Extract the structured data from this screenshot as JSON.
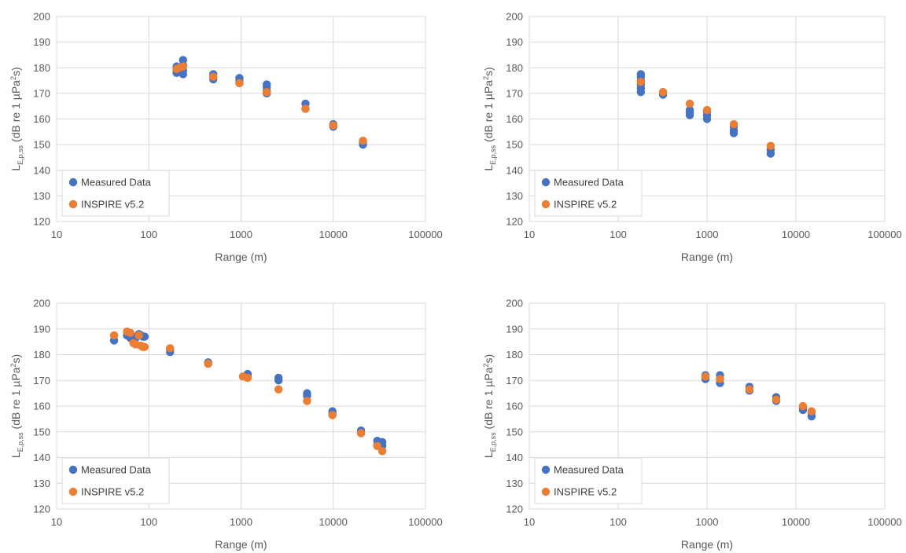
{
  "colors": {
    "measured": "#4472c4",
    "inspire": "#ed7d31",
    "grid": "#d9d9d9",
    "text": "#595959"
  },
  "chart_data": [
    {
      "type": "scatter",
      "title": "",
      "xlabel": "Range (m)",
      "ylabel_main": "L",
      "ylabel_sub": "E,p,ss",
      "ylabel_rest": "(dB re 1 µPa",
      "ylabel_sup": "2",
      "ylabel_end": "s)",
      "xscale": "log",
      "xlim": [
        10,
        100000
      ],
      "ylim": [
        120,
        200
      ],
      "xticks": [
        10,
        100,
        1000,
        10000,
        100000
      ],
      "xtick_labels": [
        "10",
        "100",
        "1000",
        "10000",
        "100000"
      ],
      "yticks": [
        120,
        130,
        140,
        150,
        160,
        170,
        180,
        190,
        200
      ],
      "ytick_labels": [
        "120",
        "130",
        "140",
        "150",
        "160",
        "170",
        "180",
        "190",
        "200"
      ],
      "grid": true,
      "legend_position": "bottom-left",
      "series": [
        {
          "name": "Measured Data",
          "color": "#4472c4",
          "x": [
            200,
            200,
            200,
            200,
            235,
            235,
            235,
            235,
            500,
            500,
            500,
            960,
            960,
            960,
            1900,
            1900,
            1900,
            1900,
            5000,
            5000,
            10000,
            10000,
            21000,
            21000
          ],
          "y": [
            178,
            179,
            180,
            180.5,
            177.5,
            179,
            181,
            183,
            175.5,
            176.5,
            177.5,
            174,
            175,
            176,
            170,
            171,
            172.5,
            173.5,
            164,
            166,
            157,
            158,
            150,
            151
          ]
        },
        {
          "name": "INSPIRE v5.2",
          "color": "#ed7d31",
          "x": [
            200,
            215,
            235,
            500,
            960,
            1900,
            5000,
            10000,
            21000
          ],
          "y": [
            179.5,
            180,
            180.5,
            176.5,
            174,
            170.5,
            164,
            157.5,
            151.5
          ]
        }
      ]
    },
    {
      "type": "scatter",
      "title": "",
      "xlabel": "Range (m)",
      "ylabel_main": "L",
      "ylabel_sub": "E,p,ss",
      "ylabel_rest": "(dB re 1 µPa",
      "ylabel_sup": "2",
      "ylabel_end": "s)",
      "xscale": "log",
      "xlim": [
        10,
        100000
      ],
      "ylim": [
        120,
        200
      ],
      "xticks": [
        10,
        100,
        1000,
        10000,
        100000
      ],
      "xtick_labels": [
        "10",
        "100",
        "1000",
        "10000",
        "100000"
      ],
      "yticks": [
        120,
        130,
        140,
        150,
        160,
        170,
        180,
        190,
        200
      ],
      "ytick_labels": [
        "120",
        "130",
        "140",
        "150",
        "160",
        "170",
        "180",
        "190",
        "200"
      ],
      "grid": true,
      "legend_position": "bottom-left",
      "series": [
        {
          "name": "Measured Data",
          "color": "#4472c4",
          "x": [
            180,
            180,
            180,
            180,
            180,
            180,
            320,
            320,
            640,
            640,
            640,
            1000,
            1000,
            1000,
            2000,
            2000,
            2000,
            5200,
            5200
          ],
          "y": [
            170.5,
            172,
            173.5,
            175,
            176.5,
            177.5,
            169.5,
            170.5,
            161.5,
            162.5,
            163.5,
            160,
            161.5,
            163,
            154.5,
            155.5,
            157,
            146.5,
            148
          ]
        },
        {
          "name": "INSPIRE v5.2",
          "color": "#ed7d31",
          "x": [
            180,
            320,
            640,
            1000,
            2000,
            5200
          ],
          "y": [
            174.5,
            170.5,
            166,
            163.5,
            158,
            149.5
          ]
        }
      ]
    },
    {
      "type": "scatter",
      "title": "",
      "xlabel": "Range (m)",
      "ylabel_main": "L",
      "ylabel_sub": "E,p,ss",
      "ylabel_rest": "(dB re 1 µPa",
      "ylabel_sup": "2",
      "ylabel_end": "s)",
      "xscale": "log",
      "xlim": [
        10,
        100000
      ],
      "ylim": [
        120,
        200
      ],
      "xticks": [
        10,
        100,
        1000,
        10000,
        100000
      ],
      "xtick_labels": [
        "10",
        "100",
        "1000",
        "10000",
        "100000"
      ],
      "yticks": [
        120,
        130,
        140,
        150,
        160,
        170,
        180,
        190,
        200
      ],
      "ytick_labels": [
        "120",
        "130",
        "140",
        "150",
        "160",
        "170",
        "180",
        "190",
        "200"
      ],
      "grid": true,
      "legend_position": "bottom-left",
      "series": [
        {
          "name": "Measured Data",
          "color": "#4472c4",
          "x": [
            42,
            58,
            63,
            68,
            72,
            78,
            82,
            86,
            90,
            170,
            170,
            440,
            440,
            1180,
            1180,
            2550,
            2550,
            5200,
            5200,
            9800,
            9800,
            20000,
            20000,
            30000,
            30000,
            34000,
            34000
          ],
          "y": [
            185.5,
            187.5,
            186.5,
            187,
            186.5,
            188,
            187.5,
            187,
            187,
            181,
            182,
            176.5,
            177,
            171.5,
            172.5,
            170,
            171,
            164,
            165,
            157,
            158,
            149.5,
            150.5,
            145,
            146.5,
            144.5,
            146
          ]
        },
        {
          "name": "INSPIRE v5.2",
          "color": "#ed7d31",
          "x": [
            42,
            58,
            63,
            68,
            72,
            78,
            82,
            86,
            90,
            170,
            440,
            1050,
            1180,
            2550,
            5200,
            9800,
            20000,
            30000,
            34000
          ],
          "y": [
            187.5,
            189,
            188.5,
            184.5,
            184,
            187.5,
            183.5,
            183,
            183,
            182.5,
            176.5,
            171.5,
            171,
            166.5,
            162,
            156.5,
            149.5,
            144.5,
            142.5
          ]
        }
      ]
    },
    {
      "type": "scatter",
      "title": "",
      "xlabel": "Range (m)",
      "ylabel_main": "L",
      "ylabel_sub": "E,p,ss",
      "ylabel_rest": "(dB re 1 µPa",
      "ylabel_sup": "2",
      "ylabel_end": "s)",
      "xscale": "log",
      "xlim": [
        10,
        100000
      ],
      "ylim": [
        120,
        200
      ],
      "xticks": [
        10,
        100,
        1000,
        10000,
        100000
      ],
      "xtick_labels": [
        "10",
        "100",
        "1000",
        "10000",
        "100000"
      ],
      "yticks": [
        120,
        130,
        140,
        150,
        160,
        170,
        180,
        190,
        200
      ],
      "ytick_labels": [
        "120",
        "130",
        "140",
        "150",
        "160",
        "170",
        "180",
        "190",
        "200"
      ],
      "grid": true,
      "legend_position": "bottom-left",
      "series": [
        {
          "name": "Measured Data",
          "color": "#4472c4",
          "x": [
            960,
            960,
            1400,
            1400,
            1400,
            3000,
            3000,
            6000,
            6000,
            12000,
            12000,
            15000,
            15000
          ],
          "y": [
            170.5,
            172,
            169,
            170.5,
            172,
            166,
            167.5,
            162,
            163.5,
            158.5,
            159.5,
            156,
            157.5
          ]
        },
        {
          "name": "INSPIRE v5.2",
          "color": "#ed7d31",
          "x": [
            960,
            1400,
            3000,
            6000,
            12000,
            15000
          ],
          "y": [
            171.5,
            170.5,
            166.5,
            162.5,
            160,
            158
          ]
        }
      ]
    }
  ]
}
